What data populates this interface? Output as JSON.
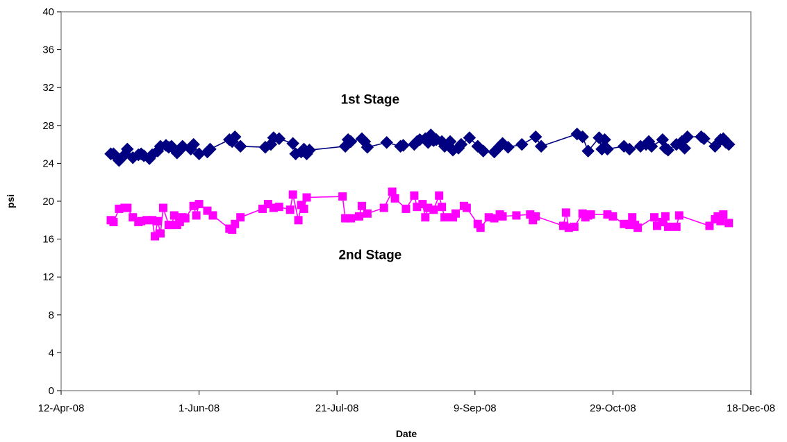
{
  "chart_data": {
    "type": "line",
    "title": "",
    "xlabel": "Date",
    "ylabel": "psi",
    "x_is_date": true,
    "xlim": [
      "2008-04-12",
      "2008-12-18"
    ],
    "ylim": [
      0,
      40
    ],
    "x_ticks": [
      {
        "date": "2008-04-12",
        "label": "12-Apr-08"
      },
      {
        "date": "2008-06-01",
        "label": "1-Jun-08"
      },
      {
        "date": "2008-07-21",
        "label": "21-Jul-08"
      },
      {
        "date": "2008-09-09",
        "label": "9-Sep-08"
      },
      {
        "date": "2008-10-29",
        "label": "29-Oct-08"
      },
      {
        "date": "2008-12-18",
        "label": "18-Dec-08"
      }
    ],
    "y_ticks": [
      0,
      4,
      8,
      12,
      16,
      20,
      24,
      28,
      32,
      36,
      40
    ],
    "grid": false,
    "legend": "none",
    "annotations": [
      {
        "text": "1st Stage",
        "date": "2008-08-02",
        "y": 30.3
      },
      {
        "text": "2nd Stage",
        "date": "2008-08-02",
        "y": 13.9
      }
    ],
    "series": [
      {
        "color": "#000080",
        "line_color": "#000080",
        "marker": "diamond",
        "points": [
          [
            "2008-04-30",
            25.0
          ],
          [
            "2008-05-01",
            25.0
          ],
          [
            "2008-05-02",
            24.7
          ],
          [
            "2008-05-03",
            24.3
          ],
          [
            "2008-05-05",
            24.9
          ],
          [
            "2008-05-06",
            25.5
          ],
          [
            "2008-05-08",
            24.6
          ],
          [
            "2008-05-10",
            24.9
          ],
          [
            "2008-05-11",
            25.0
          ],
          [
            "2008-05-12",
            24.8
          ],
          [
            "2008-05-14",
            24.5
          ],
          [
            "2008-05-15",
            24.9
          ],
          [
            "2008-05-17",
            25.3
          ],
          [
            "2008-05-18",
            25.8
          ],
          [
            "2008-05-20",
            25.9
          ],
          [
            "2008-05-21",
            25.7
          ],
          [
            "2008-05-22",
            25.8
          ],
          [
            "2008-05-23",
            25.5
          ],
          [
            "2008-05-24",
            25.1
          ],
          [
            "2008-05-25",
            25.4
          ],
          [
            "2008-05-26",
            25.8
          ],
          [
            "2008-05-29",
            25.5
          ],
          [
            "2008-05-30",
            26.0
          ],
          [
            "2008-06-01",
            25.0
          ],
          [
            "2008-06-04",
            25.2
          ],
          [
            "2008-06-05",
            25.5
          ],
          [
            "2008-06-12",
            26.5
          ],
          [
            "2008-06-13",
            26.3
          ],
          [
            "2008-06-14",
            26.8
          ],
          [
            "2008-06-16",
            25.8
          ],
          [
            "2008-06-25",
            25.7
          ],
          [
            "2008-06-27",
            26.0
          ],
          [
            "2008-06-28",
            26.7
          ],
          [
            "2008-06-30",
            26.6
          ],
          [
            "2008-07-05",
            26.1
          ],
          [
            "2008-07-06",
            25.0
          ],
          [
            "2008-07-08",
            25.2
          ],
          [
            "2008-07-09",
            25.5
          ],
          [
            "2008-07-10",
            25.0
          ],
          [
            "2008-07-11",
            25.4
          ],
          [
            "2008-07-24",
            25.8
          ],
          [
            "2008-07-25",
            26.5
          ],
          [
            "2008-07-26",
            26.3
          ],
          [
            "2008-07-30",
            26.6
          ],
          [
            "2008-07-31",
            26.3
          ],
          [
            "2008-08-01",
            25.7
          ],
          [
            "2008-08-08",
            26.2
          ],
          [
            "2008-08-13",
            25.8
          ],
          [
            "2008-08-14",
            25.9
          ],
          [
            "2008-08-18",
            26.0
          ],
          [
            "2008-08-19",
            26.3
          ],
          [
            "2008-08-20",
            26.5
          ],
          [
            "2008-08-22",
            26.6
          ],
          [
            "2008-08-23",
            26.2
          ],
          [
            "2008-08-24",
            27.0
          ],
          [
            "2008-08-25",
            26.4
          ],
          [
            "2008-08-26",
            26.5
          ],
          [
            "2008-08-28",
            26.3
          ],
          [
            "2008-08-29",
            25.8
          ],
          [
            "2008-08-31",
            26.3
          ],
          [
            "2008-09-01",
            25.4
          ],
          [
            "2008-09-03",
            25.6
          ],
          [
            "2008-09-04",
            26.0
          ],
          [
            "2008-09-07",
            26.7
          ],
          [
            "2008-09-10",
            25.8
          ],
          [
            "2008-09-12",
            25.3
          ],
          [
            "2008-09-16",
            25.2
          ],
          [
            "2008-09-18",
            25.8
          ],
          [
            "2008-09-19",
            26.1
          ],
          [
            "2008-09-21",
            25.7
          ],
          [
            "2008-09-26",
            26.0
          ],
          [
            "2008-10-01",
            26.8
          ],
          [
            "2008-10-03",
            25.8
          ],
          [
            "2008-10-16",
            27.1
          ],
          [
            "2008-10-18",
            26.8
          ],
          [
            "2008-10-20",
            25.3
          ],
          [
            "2008-10-24",
            26.7
          ],
          [
            "2008-10-25",
            25.5
          ],
          [
            "2008-10-26",
            26.5
          ],
          [
            "2008-10-27",
            25.5
          ],
          [
            "2008-11-02",
            25.8
          ],
          [
            "2008-11-04",
            25.5
          ],
          [
            "2008-11-08",
            25.8
          ],
          [
            "2008-11-10",
            26.0
          ],
          [
            "2008-11-11",
            26.3
          ],
          [
            "2008-11-12",
            25.8
          ],
          [
            "2008-11-16",
            26.5
          ],
          [
            "2008-11-17",
            25.6
          ],
          [
            "2008-11-18",
            25.4
          ],
          [
            "2008-11-21",
            26.0
          ],
          [
            "2008-11-23",
            26.3
          ],
          [
            "2008-11-24",
            25.6
          ],
          [
            "2008-11-25",
            26.8
          ],
          [
            "2008-11-30",
            26.8
          ],
          [
            "2008-12-01",
            26.6
          ],
          [
            "2008-12-05",
            25.8
          ],
          [
            "2008-12-07",
            26.5
          ],
          [
            "2008-12-08",
            26.6
          ],
          [
            "2008-12-09",
            26.2
          ],
          [
            "2008-12-10",
            26.0
          ]
        ]
      },
      {
        "color": "#ff00ff",
        "line_color": "#ff00ff",
        "marker": "square",
        "points": [
          [
            "2008-04-30",
            18.0
          ],
          [
            "2008-05-01",
            17.8
          ],
          [
            "2008-05-03",
            19.2
          ],
          [
            "2008-05-05",
            19.3
          ],
          [
            "2008-05-06",
            19.3
          ],
          [
            "2008-05-08",
            18.3
          ],
          [
            "2008-05-10",
            17.8
          ],
          [
            "2008-05-11",
            17.9
          ],
          [
            "2008-05-13",
            18.0
          ],
          [
            "2008-05-15",
            18.0
          ],
          [
            "2008-05-16",
            16.3
          ],
          [
            "2008-05-17",
            17.9
          ],
          [
            "2008-05-18",
            16.6
          ],
          [
            "2008-05-19",
            19.3
          ],
          [
            "2008-05-21",
            17.5
          ],
          [
            "2008-05-22",
            17.5
          ],
          [
            "2008-05-23",
            18.5
          ],
          [
            "2008-05-24",
            17.5
          ],
          [
            "2008-05-25",
            17.8
          ],
          [
            "2008-05-26",
            18.3
          ],
          [
            "2008-05-27",
            18.2
          ],
          [
            "2008-05-30",
            19.5
          ],
          [
            "2008-05-31",
            18.5
          ],
          [
            "2008-06-01",
            19.7
          ],
          [
            "2008-06-04",
            19.0
          ],
          [
            "2008-06-06",
            18.5
          ],
          [
            "2008-06-12",
            17.1
          ],
          [
            "2008-06-13",
            17.0
          ],
          [
            "2008-06-14",
            17.6
          ],
          [
            "2008-06-16",
            18.3
          ],
          [
            "2008-06-24",
            19.2
          ],
          [
            "2008-06-26",
            19.7
          ],
          [
            "2008-06-28",
            19.3
          ],
          [
            "2008-06-30",
            19.4
          ],
          [
            "2008-07-04",
            19.1
          ],
          [
            "2008-07-05",
            20.7
          ],
          [
            "2008-07-07",
            18.0
          ],
          [
            "2008-07-08",
            19.6
          ],
          [
            "2008-07-09",
            19.2
          ],
          [
            "2008-07-10",
            20.4
          ],
          [
            "2008-07-23",
            20.5
          ],
          [
            "2008-07-24",
            18.2
          ],
          [
            "2008-07-26",
            18.2
          ],
          [
            "2008-07-29",
            18.4
          ],
          [
            "2008-07-30",
            19.5
          ],
          [
            "2008-08-01",
            18.7
          ],
          [
            "2008-08-07",
            19.3
          ],
          [
            "2008-08-10",
            21.0
          ],
          [
            "2008-08-11",
            20.3
          ],
          [
            "2008-08-15",
            19.2
          ],
          [
            "2008-08-18",
            20.6
          ],
          [
            "2008-08-19",
            19.4
          ],
          [
            "2008-08-21",
            19.7
          ],
          [
            "2008-08-22",
            18.3
          ],
          [
            "2008-08-23",
            19.3
          ],
          [
            "2008-08-25",
            19.1
          ],
          [
            "2008-08-27",
            20.6
          ],
          [
            "2008-08-28",
            19.4
          ],
          [
            "2008-08-29",
            18.3
          ],
          [
            "2008-09-01",
            18.3
          ],
          [
            "2008-09-02",
            18.7
          ],
          [
            "2008-09-05",
            19.5
          ],
          [
            "2008-09-06",
            19.3
          ],
          [
            "2008-09-10",
            17.6
          ],
          [
            "2008-09-11",
            17.2
          ],
          [
            "2008-09-14",
            18.3
          ],
          [
            "2008-09-16",
            18.2
          ],
          [
            "2008-09-18",
            18.6
          ],
          [
            "2008-09-19",
            18.4
          ],
          [
            "2008-09-24",
            18.5
          ],
          [
            "2008-09-29",
            18.6
          ],
          [
            "2008-09-30",
            18.0
          ],
          [
            "2008-10-01",
            18.4
          ],
          [
            "2008-10-11",
            17.4
          ],
          [
            "2008-10-12",
            18.8
          ],
          [
            "2008-10-13",
            17.2
          ],
          [
            "2008-10-15",
            17.3
          ],
          [
            "2008-10-18",
            18.7
          ],
          [
            "2008-10-19",
            18.3
          ],
          [
            "2008-10-20",
            18.5
          ],
          [
            "2008-10-21",
            18.6
          ],
          [
            "2008-10-27",
            18.6
          ],
          [
            "2008-10-29",
            18.4
          ],
          [
            "2008-11-02",
            17.6
          ],
          [
            "2008-11-04",
            17.5
          ],
          [
            "2008-11-05",
            18.3
          ],
          [
            "2008-11-06",
            17.5
          ],
          [
            "2008-11-07",
            17.2
          ],
          [
            "2008-11-13",
            18.3
          ],
          [
            "2008-11-14",
            17.4
          ],
          [
            "2008-11-16",
            17.8
          ],
          [
            "2008-11-17",
            18.4
          ],
          [
            "2008-11-18",
            17.3
          ],
          [
            "2008-11-21",
            17.3
          ],
          [
            "2008-11-22",
            18.5
          ],
          [
            "2008-12-03",
            17.4
          ],
          [
            "2008-12-05",
            18.1
          ],
          [
            "2008-12-06",
            18.4
          ],
          [
            "2008-12-07",
            17.9
          ],
          [
            "2008-12-08",
            18.6
          ],
          [
            "2008-12-10",
            17.7
          ]
        ]
      }
    ]
  }
}
